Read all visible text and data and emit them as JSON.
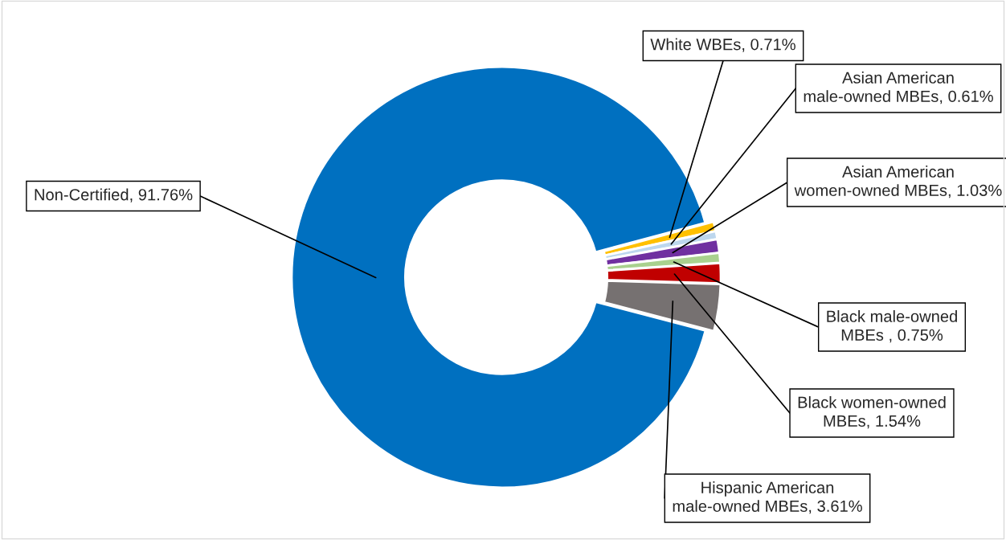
{
  "chart_data": {
    "type": "donut",
    "categories": [
      "White WBEs",
      "Asian American male-owned MBEs",
      "Asian American women-owned MBEs",
      "Black male-owned MBEs ",
      "Black women-owned MBEs",
      "Hispanic American male-owned MBEs",
      "Non-Certified"
    ],
    "value_labels": [
      "0.71%",
      "0.61%",
      "1.03%",
      "0.75%",
      "1.54%",
      "3.61%",
      "91.76%"
    ],
    "values": [
      0.71,
      0.61,
      1.03,
      0.75,
      1.54,
      3.61,
      91.76
    ],
    "colors": [
      "#ffc000",
      "#bdd7ee",
      "#7030a0",
      "#a9d18e",
      "#c00000",
      "#767171",
      "#0070c0"
    ],
    "legend": false
  }
}
